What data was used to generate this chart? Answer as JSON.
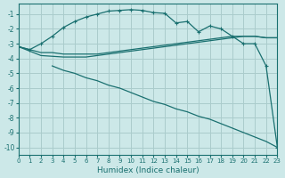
{
  "xlabel": "Humidex (Indice chaleur)",
  "bg_color": "#cce8e8",
  "grid_color": "#aacccc",
  "line_color": "#1a7070",
  "xlim": [
    0,
    23
  ],
  "ylim": [
    -10.5,
    -0.3
  ],
  "yticks": [
    -1,
    -2,
    -3,
    -4,
    -5,
    -6,
    -7,
    -8,
    -9,
    -10
  ],
  "xticks": [
    0,
    1,
    2,
    3,
    4,
    5,
    6,
    7,
    8,
    9,
    10,
    11,
    12,
    13,
    14,
    15,
    16,
    17,
    18,
    19,
    20,
    21,
    22,
    23
  ],
  "series": [
    {
      "x": [
        0,
        1,
        2,
        3,
        4,
        5,
        6,
        7,
        8,
        9,
        10,
        11,
        12,
        13,
        14,
        15,
        16,
        17,
        18,
        19,
        20,
        21,
        22,
        23
      ],
      "y": [
        -3.2,
        -3.4,
        -3.0,
        -2.5,
        -1.9,
        -1.5,
        -1.2,
        -1.0,
        -0.8,
        -0.75,
        -0.7,
        -0.75,
        -0.9,
        -0.95,
        -1.6,
        -1.5,
        -2.2,
        -1.8,
        -2.0,
        -2.5,
        -3.0,
        -3.0,
        -4.5,
        -10.0
      ],
      "marker": true,
      "lw": 0.9
    },
    {
      "x": [
        0,
        1,
        2,
        3,
        4,
        5,
        6,
        7,
        8,
        9,
        10,
        11,
        12,
        13,
        14,
        15,
        16,
        17,
        18,
        19,
        20,
        21,
        22,
        23
      ],
      "y": [
        -3.2,
        -3.4,
        -3.6,
        -3.6,
        -3.7,
        -3.7,
        -3.7,
        -3.7,
        -3.6,
        -3.5,
        -3.4,
        -3.3,
        -3.2,
        -3.1,
        -3.0,
        -2.9,
        -2.8,
        -2.7,
        -2.6,
        -2.5,
        -2.5,
        -2.5,
        -2.6,
        -2.6
      ],
      "marker": false,
      "lw": 0.9
    },
    {
      "x": [
        0,
        1,
        2,
        3,
        4,
        5,
        6,
        7,
        8,
        9,
        10,
        11,
        12,
        13,
        14,
        15,
        16,
        17,
        18,
        19,
        20,
        21,
        22,
        23
      ],
      "y": [
        -3.2,
        -3.5,
        -3.8,
        -3.85,
        -3.9,
        -3.9,
        -3.9,
        -3.8,
        -3.7,
        -3.6,
        -3.5,
        -3.4,
        -3.3,
        -3.2,
        -3.1,
        -3.0,
        -2.9,
        -2.8,
        -2.7,
        -2.6,
        -2.5,
        -2.5,
        -2.6,
        -2.6
      ],
      "marker": false,
      "lw": 0.9
    },
    {
      "x": [
        3,
        4,
        5,
        6,
        7,
        8,
        9,
        10,
        11,
        12,
        13,
        14,
        15,
        16,
        17,
        18,
        19,
        20,
        21,
        22,
        23
      ],
      "y": [
        -4.5,
        -4.8,
        -5.0,
        -5.3,
        -5.5,
        -5.8,
        -6.0,
        -6.3,
        -6.6,
        -6.9,
        -7.1,
        -7.4,
        -7.6,
        -7.9,
        -8.1,
        -8.4,
        -8.7,
        -9.0,
        -9.3,
        -9.6,
        -10.0
      ],
      "marker": false,
      "lw": 0.9
    }
  ]
}
